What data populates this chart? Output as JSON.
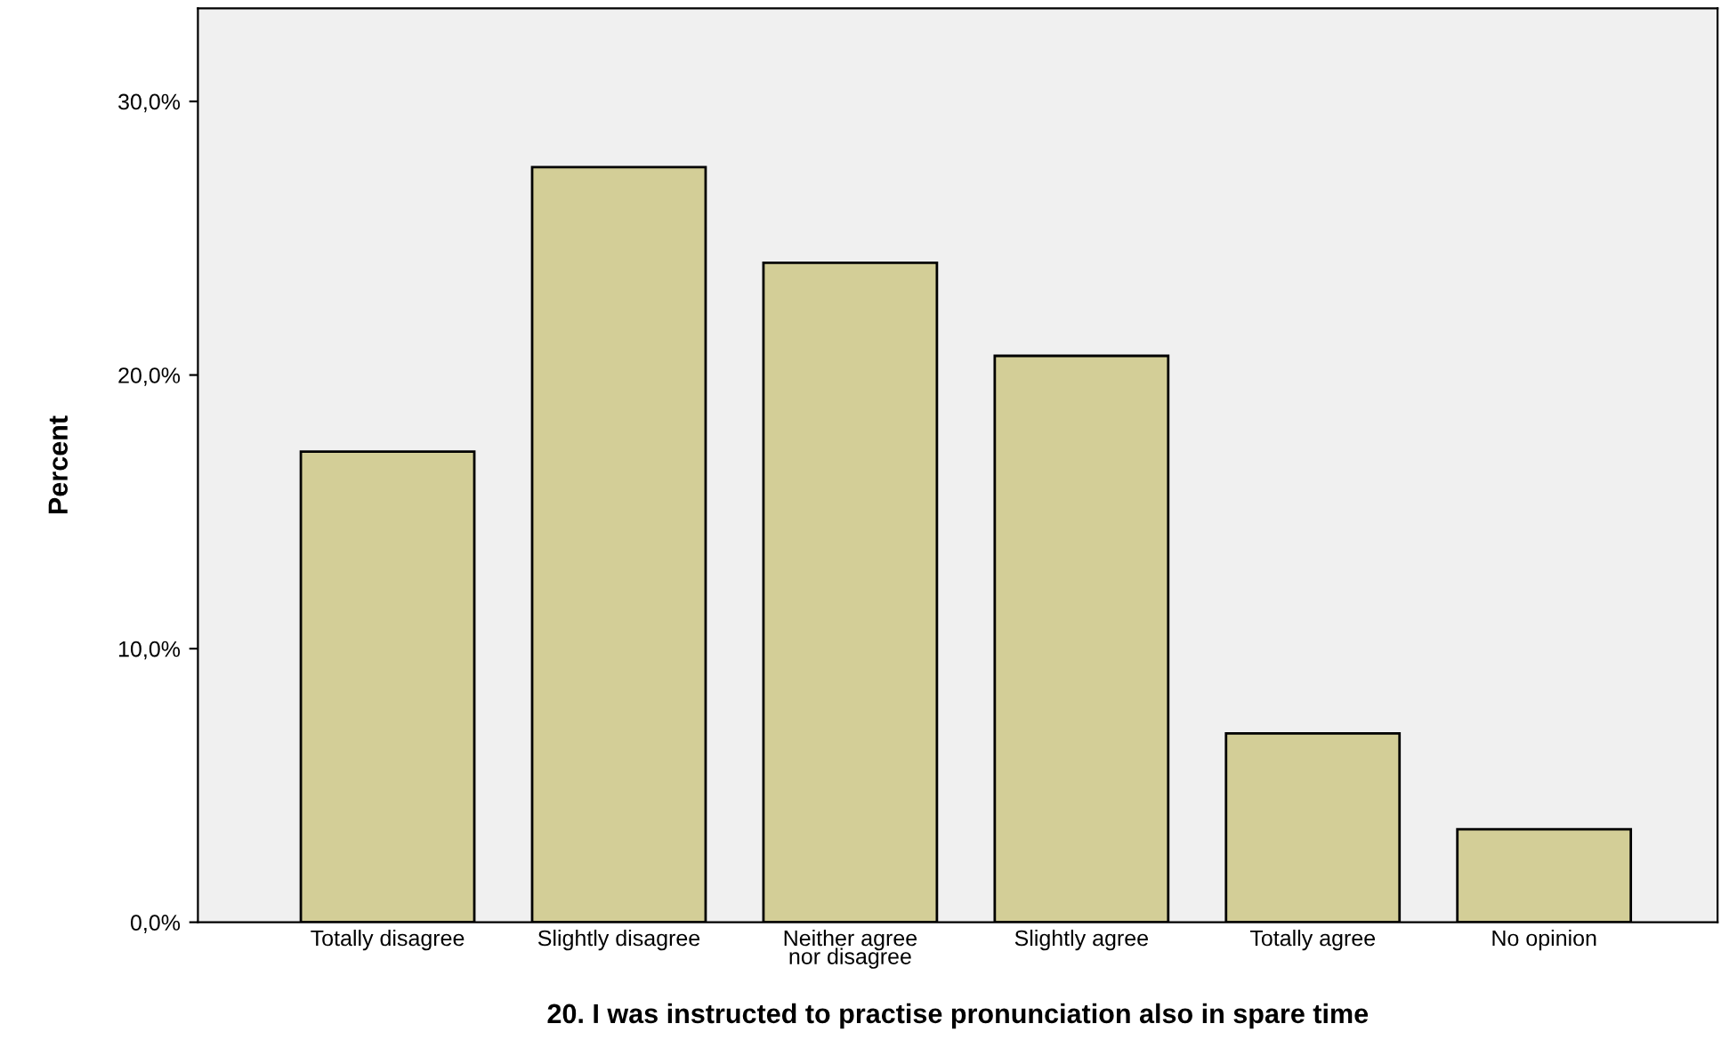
{
  "chart_data": {
    "type": "bar",
    "xlabel": "20. I was instructed to practise pronunciation also in spare time",
    "ylabel": "Percent",
    "categories": [
      "Totally disagree",
      "Slightly disagree",
      "Neither agree\nnor disagree",
      "Slightly agree",
      "Totally agree",
      "No opinion"
    ],
    "values": [
      17.2,
      27.6,
      24.1,
      20.7,
      6.9,
      3.4
    ],
    "color": "#d3ce97",
    "ylim": [
      0,
      33.4
    ],
    "yticks": [
      {
        "value": 0,
        "label": "0,0%"
      },
      {
        "value": 10,
        "label": "10,0%"
      },
      {
        "value": 20,
        "label": "20,0%"
      },
      {
        "value": 30,
        "label": "30,0%"
      }
    ],
    "grid": false
  }
}
